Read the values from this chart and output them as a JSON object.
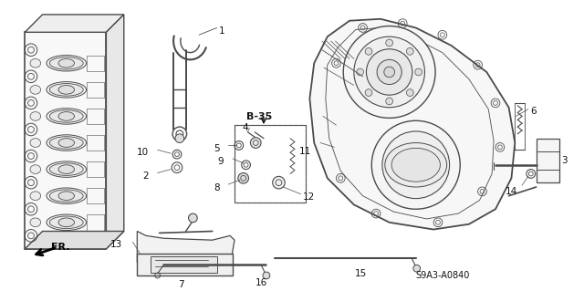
{
  "bg_color": "#f5f5f0",
  "fig_width": 6.4,
  "fig_height": 3.19,
  "dpi": 100,
  "diagram_code": "S9A3-A0840",
  "section_ref": "B-35",
  "direction_label": "FR.",
  "line_color": "#4a4a4a",
  "text_color": "#111111",
  "label_fontsize": 7.5,
  "code_fontsize": 7,
  "ref_fontsize": 8
}
